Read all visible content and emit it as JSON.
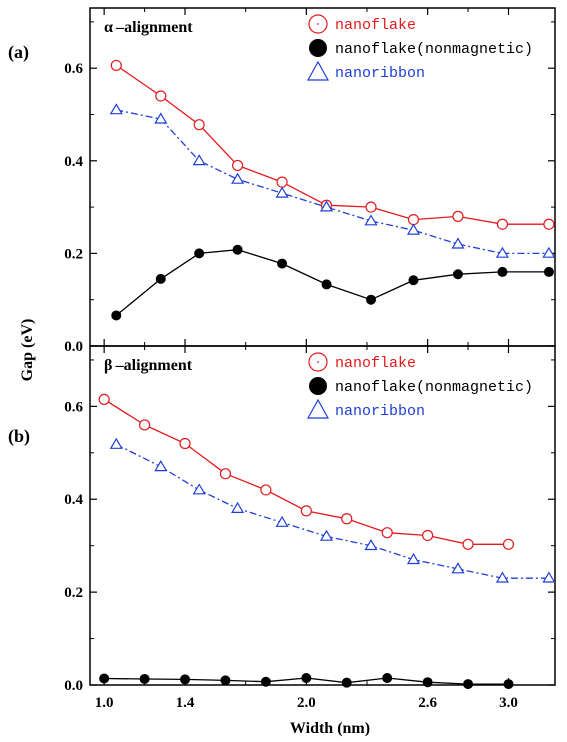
{
  "figure": {
    "xlabel": "Width (nm)",
    "ylabel": "Gap (eV)"
  },
  "chart_data": [
    {
      "type": "line",
      "panel_label": "(a)",
      "title": "α –alignment",
      "xlim": [
        0.93,
        3.23
      ],
      "ylim": [
        0.0,
        0.73
      ],
      "xticks": [
        1.0,
        1.4,
        2.0,
        2.6,
        3.0
      ],
      "xtick_labels": [
        "1.0",
        "1.4",
        "2.0",
        "2.6",
        "3.0"
      ],
      "yticks": [
        0.0,
        0.2,
        0.4,
        0.6
      ],
      "ytick_labels": [
        "0.0",
        "0.2",
        "0.4",
        "0.6"
      ],
      "grid": false,
      "legend_position": "top-right",
      "series": [
        {
          "name": "nanoflake",
          "color": "#e41a1c",
          "marker": "open-circle",
          "line_style": "solid",
          "x": [
            1.06,
            1.28,
            1.47,
            1.66,
            1.88,
            2.1,
            2.32,
            2.53,
            2.75,
            2.97,
            3.2
          ],
          "y": [
            0.606,
            0.54,
            0.478,
            0.39,
            0.354,
            0.304,
            0.3,
            0.273,
            0.28,
            0.263,
            0.263
          ]
        },
        {
          "name": "nanoflake(nonmagnetic)",
          "color": "#000000",
          "marker": "filled-circle",
          "line_style": "solid",
          "x": [
            1.06,
            1.28,
            1.47,
            1.66,
            1.88,
            2.1,
            2.32,
            2.53,
            2.75,
            2.97,
            3.2
          ],
          "y": [
            0.066,
            0.145,
            0.2,
            0.208,
            0.178,
            0.133,
            0.1,
            0.142,
            0.155,
            0.16,
            0.16
          ]
        },
        {
          "name": "nanoribbon",
          "color": "#1f3fd6",
          "marker": "open-triangle",
          "line_style": "dashdot",
          "x": [
            1.06,
            1.28,
            1.47,
            1.66,
            1.88,
            2.1,
            2.32,
            2.53,
            2.75,
            2.97,
            3.2
          ],
          "y": [
            0.51,
            0.49,
            0.4,
            0.36,
            0.33,
            0.3,
            0.27,
            0.25,
            0.22,
            0.2,
            0.2
          ]
        }
      ]
    },
    {
      "type": "line",
      "panel_label": "(b)",
      "title": "β –alignment",
      "xlim": [
        0.93,
        3.23
      ],
      "ylim": [
        0.0,
        0.73
      ],
      "xticks": [
        1.0,
        1.4,
        2.0,
        2.6,
        3.0
      ],
      "xtick_labels": [
        "1.0",
        "1.4",
        "2.0",
        "2.6",
        "3.0"
      ],
      "yticks": [
        0.0,
        0.2,
        0.4,
        0.6
      ],
      "ytick_labels": [
        "0.0",
        "0.2",
        "0.4",
        "0.6"
      ],
      "grid": false,
      "legend_position": "top-right",
      "series": [
        {
          "name": "nanoflake",
          "color": "#e41a1c",
          "marker": "open-circle",
          "line_style": "solid",
          "x": [
            1.0,
            1.2,
            1.4,
            1.6,
            1.8,
            2.0,
            2.2,
            2.4,
            2.6,
            2.8,
            3.0
          ],
          "y": [
            0.615,
            0.56,
            0.52,
            0.455,
            0.42,
            0.375,
            0.358,
            0.328,
            0.322,
            0.303,
            0.303
          ]
        },
        {
          "name": "nanoflake(nonmagnetic)",
          "color": "#000000",
          "marker": "filled-circle",
          "line_style": "solid",
          "x": [
            1.0,
            1.2,
            1.4,
            1.6,
            1.8,
            2.0,
            2.2,
            2.4,
            2.6,
            2.8,
            3.0
          ],
          "y": [
            0.014,
            0.013,
            0.012,
            0.01,
            0.007,
            0.015,
            0.005,
            0.015,
            0.006,
            0.002,
            0.002
          ]
        },
        {
          "name": "nanoribbon",
          "color": "#1f3fd6",
          "marker": "open-triangle",
          "line_style": "dashdot",
          "x": [
            1.06,
            1.28,
            1.47,
            1.66,
            1.88,
            2.1,
            2.32,
            2.53,
            2.75,
            2.97,
            3.2
          ],
          "y": [
            0.518,
            0.47,
            0.42,
            0.38,
            0.35,
            0.32,
            0.3,
            0.27,
            0.25,
            0.23,
            0.23
          ]
        }
      ]
    }
  ]
}
